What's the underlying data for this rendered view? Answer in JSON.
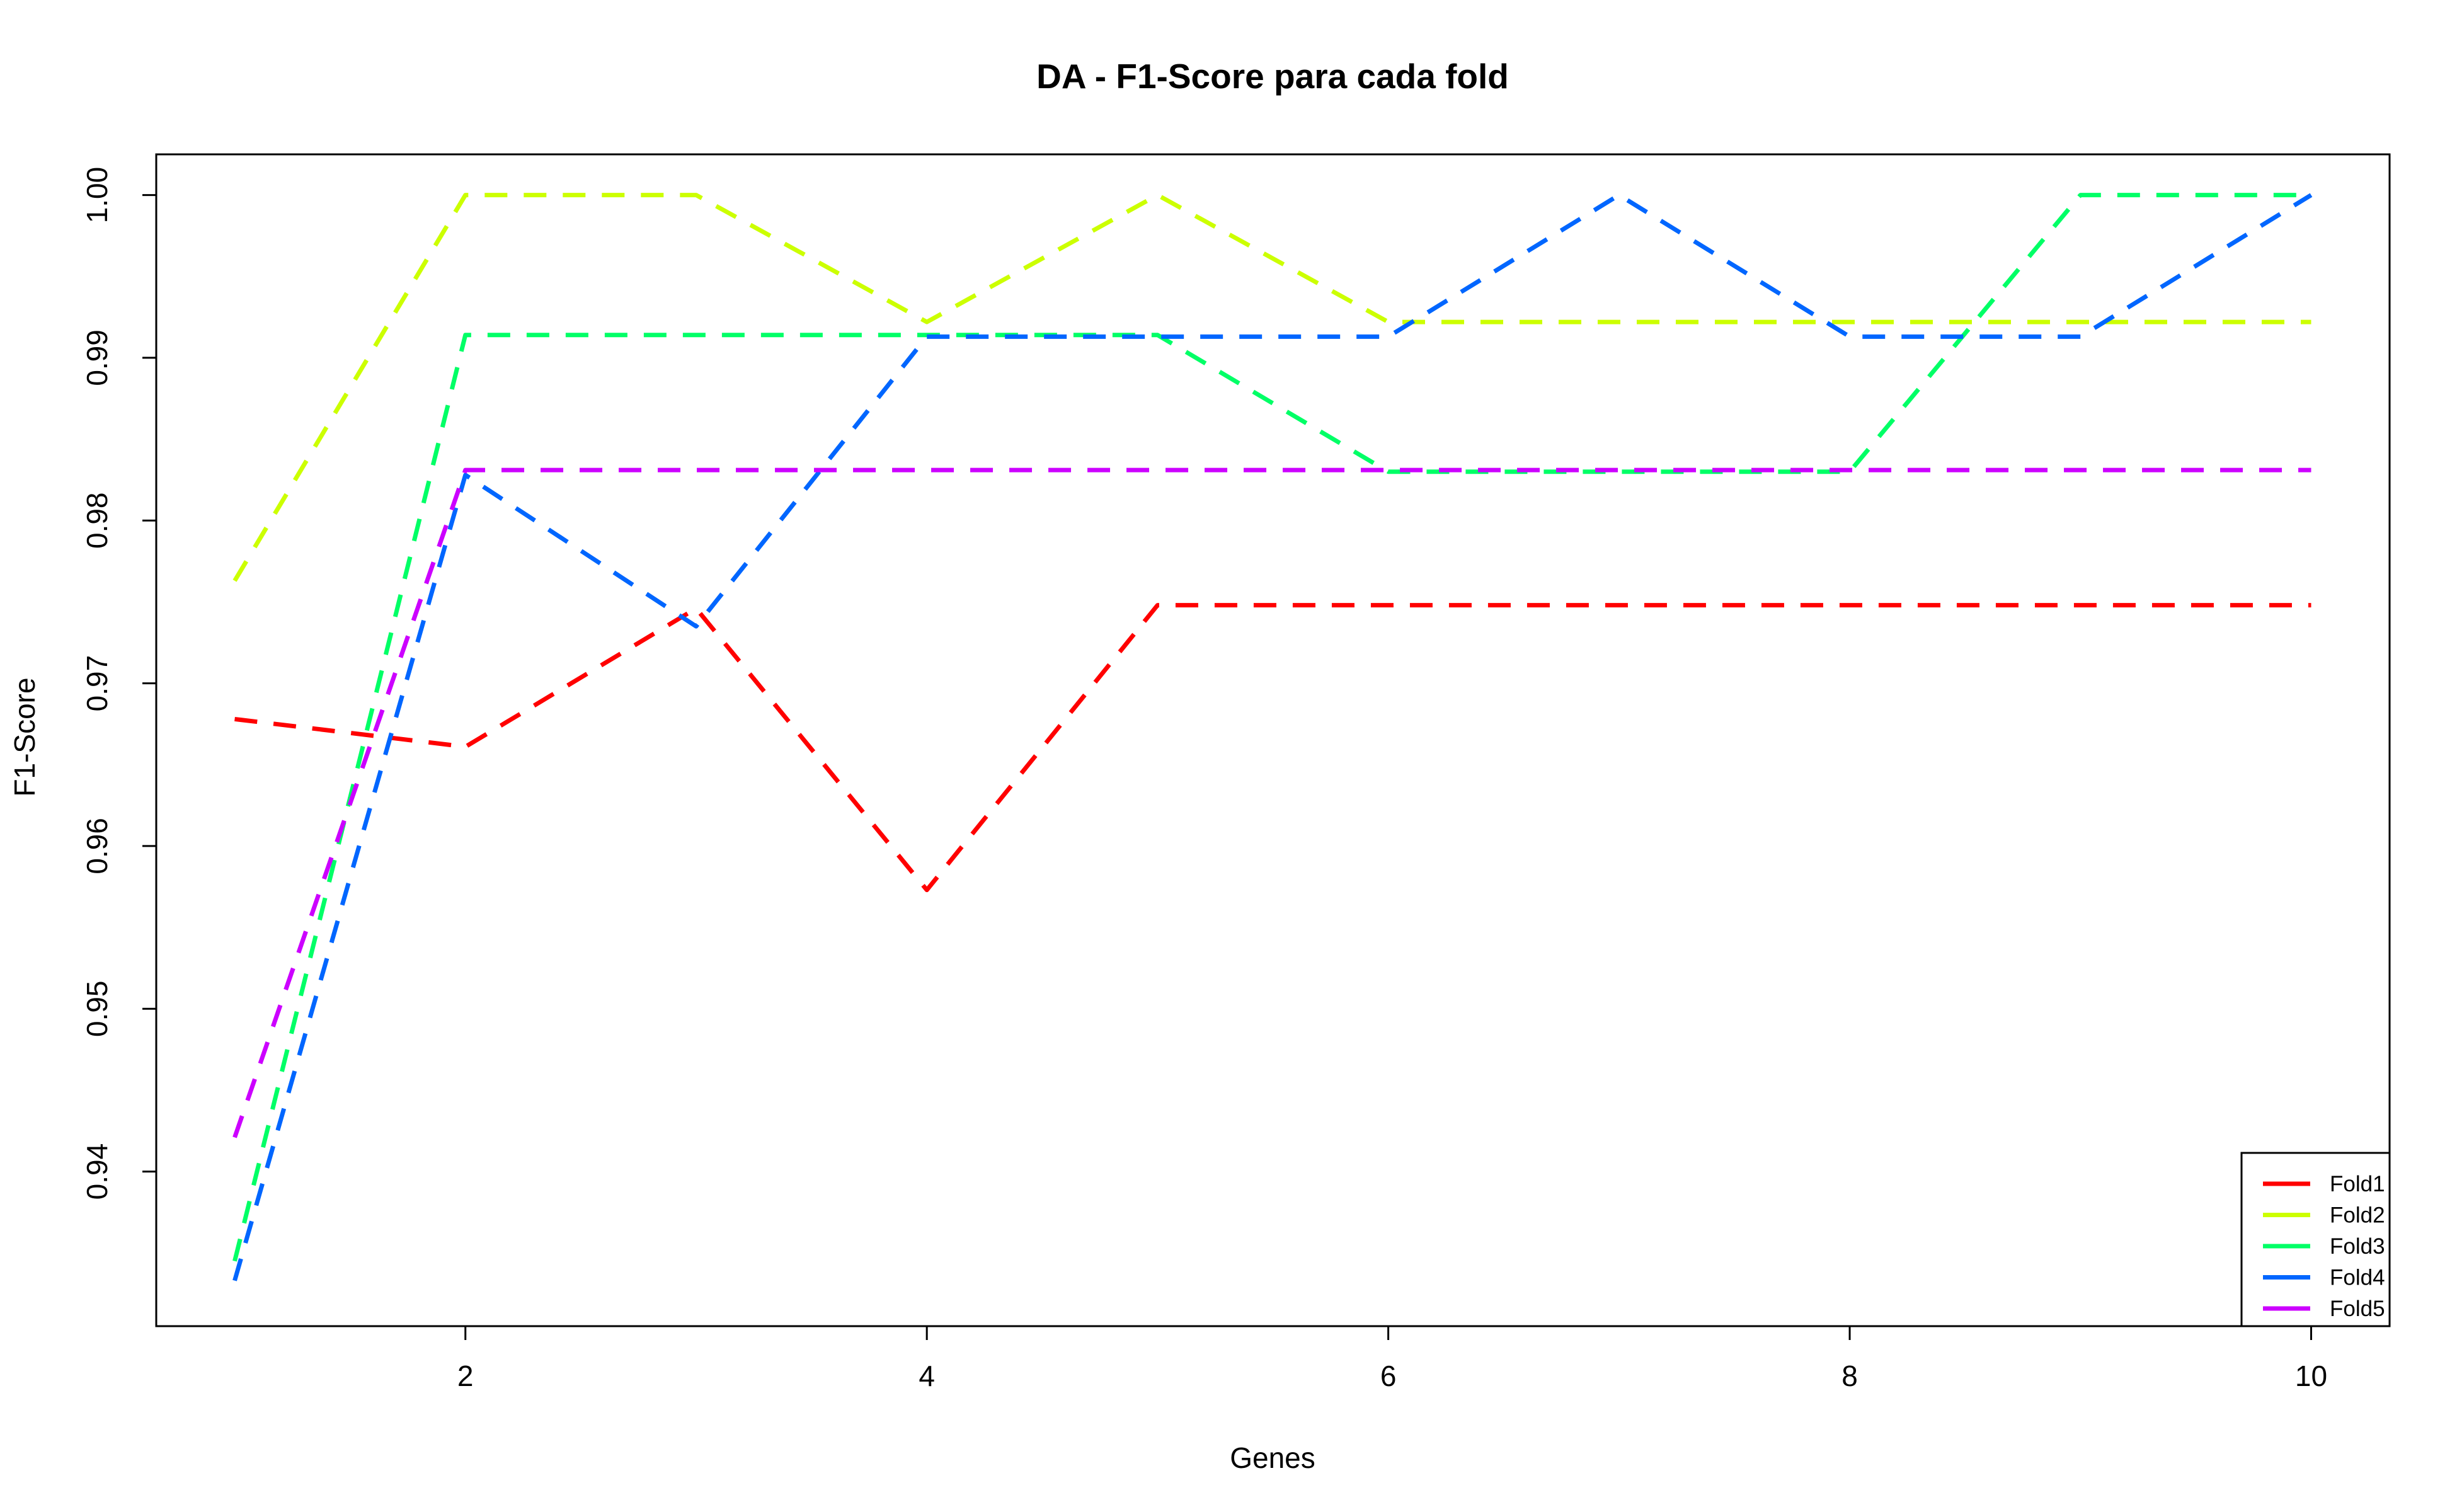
{
  "chart_data": {
    "type": "line",
    "title": "DA - F1-Score para cada fold",
    "xlabel": "Genes",
    "ylabel": "F1-Score",
    "x": [
      1,
      2,
      3,
      4,
      5,
      6,
      7,
      8,
      9,
      10
    ],
    "xlim": [
      0.66,
      10.34
    ],
    "ylim": [
      0.9305,
      1.0025
    ],
    "xticks": [
      2,
      4,
      6,
      8,
      10
    ],
    "xtick_labels": [
      "2",
      "4",
      "6",
      "8",
      "10"
    ],
    "yticks": [
      0.94,
      0.95,
      0.96,
      0.97,
      0.98,
      0.99,
      1.0
    ],
    "ytick_labels": [
      "0.94",
      "0.95",
      "0.96",
      "0.97",
      "0.98",
      "0.99",
      "1.00"
    ],
    "line_style": "dashed",
    "grid": false,
    "legend_position": "bottom-right",
    "series": [
      {
        "name": "Fold1",
        "color": "#ff0000",
        "values": [
          0.9678,
          0.9661,
          0.9746,
          0.9573,
          0.9748,
          0.9748,
          0.9748,
          0.9748,
          0.9748,
          0.9748
        ]
      },
      {
        "name": "Fold2",
        "color": "#ccff00",
        "values": [
          0.9763,
          1.0,
          1.0,
          0.9922,
          1.0,
          0.9922,
          0.9922,
          0.9922,
          0.9922,
          0.9922
        ]
      },
      {
        "name": "Fold3",
        "color": "#00ff66",
        "values": [
          0.9345,
          0.9914,
          0.9914,
          0.9914,
          0.9914,
          0.983,
          0.983,
          0.983,
          1.0,
          1.0
        ]
      },
      {
        "name": "Fold4",
        "color": "#0066ff",
        "values": [
          0.9333,
          0.9828,
          0.9735,
          0.9913,
          0.9913,
          0.9913,
          1.0,
          0.9913,
          0.9913,
          1.0
        ]
      },
      {
        "name": "Fold5",
        "color": "#cc00ff",
        "values": [
          0.9421,
          0.9831,
          0.9831,
          0.9831,
          0.9831,
          0.9831,
          0.9831,
          0.9831,
          0.9831,
          0.9831
        ]
      }
    ]
  }
}
